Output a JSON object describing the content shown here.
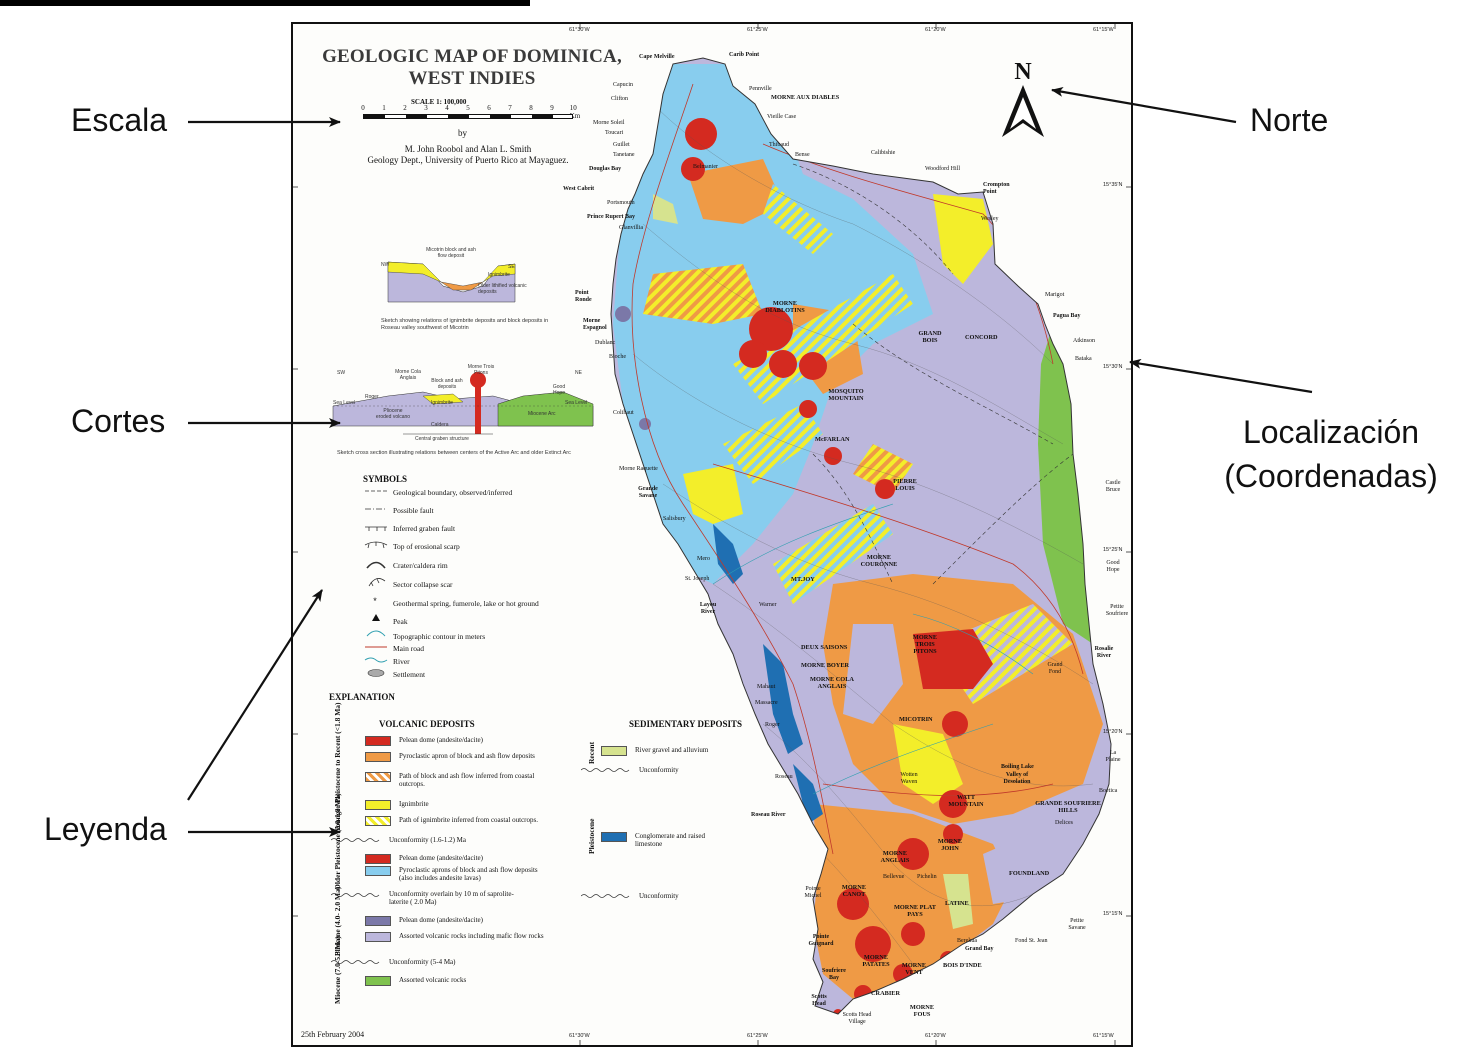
{
  "annotations": {
    "escala": "Escala",
    "norte": "Norte",
    "cortes": "Cortes",
    "localizacion_line1": "Localización",
    "localizacion_line2": "(Coordenadas)",
    "leyenda": "Leyenda"
  },
  "map": {
    "title_line1": "GEOLOGIC MAP OF DOMINICA,",
    "title_line2": "WEST INDIES",
    "scale_label": "SCALE 1: 100,000",
    "scale_ticks": [
      "0",
      "1",
      "2",
      "3",
      "4",
      "5",
      "6",
      "7",
      "8",
      "9",
      "10 Km"
    ],
    "by": "by",
    "authors": "M. John Roobol and Alan L. Smith",
    "affiliation": "Geology Dept., University of Puerto Rico at Mayaguez.",
    "north_letter": "N",
    "date": "25th February 2004",
    "coords_top": [
      "61°30'W",
      "61°25'W",
      "61°20'W",
      "61°15'W"
    ],
    "coords_bottom": [
      "61°30'W",
      "61°25'W",
      "61°20'W",
      "61°15'W"
    ],
    "coords_right": [
      "15°35'N",
      "15°30'N",
      "15°25'N",
      "15°20'N",
      "15°15'N"
    ]
  },
  "sketch1": {
    "nw": "NW",
    "se": "SE",
    "label_block": "Micotrin block and ash flow deposit",
    "label_ign": "Ignimbrite",
    "label_older": "Older lithified volcanic deposits",
    "caption": "Sketch showing relations of ignimbrite deposits and block deposits in Roseau valley southwest of Micotrin"
  },
  "sketch2": {
    "sw": "SW",
    "ne": "NE",
    "labels": [
      "Morne Cola Anglais",
      "Block and ash deposits",
      "Morne Trois Pitons",
      "Roger",
      "Ignimbrite",
      "Good Hope",
      "Sea Level",
      "Sea Level",
      "Pliocene eroded volcano",
      "Caldera",
      "Miocene Arc",
      "Central graben structure"
    ],
    "caption": "Sketch cross section illustrating relations between centers of the Active Arc and older Extinct Arc"
  },
  "symbols": {
    "title": "SYMBOLS",
    "items": [
      {
        "icon": "geological-boundary-icon",
        "label": "Geological boundary, observed/inferred"
      },
      {
        "icon": "possible-fault-icon",
        "label": "Possible fault"
      },
      {
        "icon": "graben-fault-icon",
        "label": "Inferred graben fault"
      },
      {
        "icon": "erosional-scarp-icon",
        "label": "Top of erosional scarp"
      },
      {
        "icon": "crater-rim-icon",
        "label": "Crater/caldera rim"
      },
      {
        "icon": "collapse-scar-icon",
        "label": "Sector collapse scar"
      },
      {
        "icon": "geothermal-icon",
        "label": "Geothermal spring, fumerole, lake or hot ground"
      },
      {
        "icon": "peak-icon",
        "label": "Peak"
      },
      {
        "icon": "contour-icon",
        "label": "Topographic contour in meters"
      },
      {
        "icon": "road-icon",
        "label": "Main road"
      },
      {
        "icon": "river-icon",
        "label": "River"
      },
      {
        "icon": "settlement-icon",
        "label": "Settlement"
      }
    ]
  },
  "explanation": {
    "title": "EXPLANATION",
    "volcanic_title": "VOLCANIC DEPOSITS",
    "sedimentary_title": "SEDIMENTARY DEPOSITS",
    "age_younger": "Younger Pleistocene to Recent (<1.8 Ma)",
    "age_older": "Older Pleistocene (2.0-1.8 Ma)",
    "age_pliocene": "Pliocene (4.0- 2.0 Ma)",
    "age_miocene": "Miocene (7.0-5.3 Ma)",
    "age_recent": "Recent",
    "age_pleistocene": "Pleistocene",
    "volcanic": [
      {
        "color": "#d42a20",
        "label": "Pelean dome (andesite/dacite)"
      },
      {
        "color": "#ef9a45",
        "label": "Pyroclastic apron of block and ash flow deposits"
      },
      {
        "color": "hatch-orange",
        "label": "Path of block and ash flow inferred from coastal outcrops."
      },
      {
        "color": "#f3ee2a",
        "label": "Ignimbrite"
      },
      {
        "color": "hatch-yellow",
        "label": "Path of ignimbrite inferred from coastal outcrops."
      },
      {
        "color": "#d42a20",
        "label": "Pelean dome (andesite/dacite)"
      },
      {
        "color": "#88cdee",
        "label": "Pyroclastic aprons of block and ash flow deposits (also includes andesite lavas)"
      },
      {
        "color": "#7b78a8",
        "label": "Pelean dome (andesite/dacite)"
      },
      {
        "color": "#bcb7dc",
        "label": "Assorted volcanic rocks including mafic flow rocks"
      },
      {
        "color": "#7fc24e",
        "label": "Assorted volcanic rocks"
      }
    ],
    "unconformities": [
      "Unconformity (1.6-1.2) Ma",
      "Unconformity overlain by 10 m of saprolite-laterite ( 2.0 Ma)",
      "Unconformity (5-4 Ma)"
    ],
    "sedimentary": [
      {
        "color": "#d6e38f",
        "label": "River gravel and alluvium"
      },
      {
        "color": "#1f6fb2",
        "label": "Conglomerate and raised limestone"
      }
    ],
    "sed_unconformities": [
      "Unconformity",
      "Unconformity"
    ]
  },
  "places": [
    "Cape Melville",
    "Carib Point",
    "Capucin",
    "Clifton",
    "Pennville",
    "MORNE AUX DIABLES",
    "Vieille Case",
    "Morne Soleil",
    "Toucari",
    "Guillet",
    "Tanetane",
    "Thibaud",
    "Bense",
    "Calibishie",
    "Woodford Hill",
    "Douglas Bay",
    "Belmanier",
    "West Cabrit",
    "Portsmouth",
    "Crompton Point",
    "Wesley",
    "Prince Rupert Bay",
    "Glanvillia",
    "Marigot",
    "Point Ronde",
    "Pagua Bay",
    "Morne Espagnol",
    "MORNE DIABLOTINS",
    "GRAND BOIS",
    "CONCORD",
    "Atkinson",
    "Dublanc",
    "Bioche",
    "Bataka",
    "MOSQUITO MOUNTAIN",
    "Colihaut",
    "McFARLAN",
    "Morne Raquette",
    "PIERRE LOUIS",
    "Grande Savane",
    "Castle Bruce",
    "Salisbury",
    "MORNE COURONNE",
    "Mero",
    "St. Joseph",
    "MT.JOY",
    "Good Hope",
    "Layou River",
    "Petite Soufriere",
    "Warner",
    "MORNE TROIS PITONS",
    "Rosalie River",
    "DEUX SAISONS",
    "MORNE BOYER",
    "MORNE COLA ANGLAIS",
    "Grand Fond",
    "Mahaut",
    "Massacre",
    "MICOTRIN",
    "Roger",
    "La Plaine",
    "Roseau",
    "Boiling Lake",
    "Valley of Desolation",
    "WATT MOUNTAIN",
    "GRANDE SOUFRIERE HILLS",
    "Boetica",
    "Wotten Waven",
    "Roseau River",
    "Delices",
    "MORNE ANGLAIS",
    "MORNE JOHN",
    "FOUNDLAND",
    "Pointe Michel",
    "MORNE CANOT",
    "Bellevue",
    "Pichelin",
    "LATINE",
    "MORNE PLAT PAYS",
    "Pointe Guignard",
    "Berekua",
    "Grand Bay",
    "Fond St. Jean",
    "Petite Savane",
    "Soufriere Bay",
    "MORNE PATATES",
    "MORNE VENT",
    "BOIS D'INDE",
    "Scotts Head",
    "CRABIER",
    "Scotts Head Village",
    "MORNE FOUS"
  ],
  "colors": {
    "pelean": "#d42a20",
    "apron": "#ef9a45",
    "ignimbrite": "#f3ee2a",
    "older_apron": "#88cdee",
    "pliocene_dome": "#7b78a8",
    "pliocene": "#bcb7dc",
    "miocene": "#7fc24e",
    "alluvium": "#d6e38f",
    "limestone": "#1f6fb2"
  }
}
